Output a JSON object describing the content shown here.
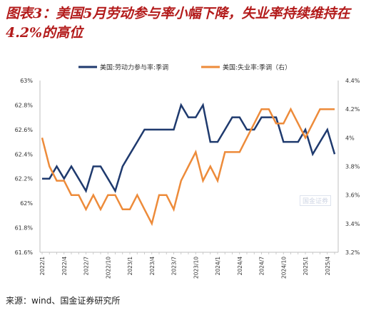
{
  "figure": {
    "title": "图表3：美国5月劳动参与率小幅下降，失业率持续维持在4.2%的高位",
    "source": "来源：wind、国金证券研究所",
    "watermark": "国金证券"
  },
  "chart_data": {
    "type": "line",
    "title": "图表3：美国5月劳动参与率小幅下降，失业率持续维持在4.2%的高位",
    "x_tick_labels": [
      "2022/1",
      "2022/4",
      "2022/7",
      "2022/10",
      "2023/1",
      "2023/4",
      "2023/7",
      "2023/10",
      "2024/1",
      "2024/4",
      "2024/7",
      "2024/10",
      "2025/1",
      "2025/4"
    ],
    "x": [
      "2022/1",
      "2022/2",
      "2022/3",
      "2022/4",
      "2022/5",
      "2022/6",
      "2022/7",
      "2022/8",
      "2022/9",
      "2022/10",
      "2022/11",
      "2022/12",
      "2023/1",
      "2023/2",
      "2023/3",
      "2023/4",
      "2023/5",
      "2023/6",
      "2023/7",
      "2023/8",
      "2023/9",
      "2023/10",
      "2023/11",
      "2023/12",
      "2024/1",
      "2024/2",
      "2024/3",
      "2024/4",
      "2024/5",
      "2024/6",
      "2024/7",
      "2024/8",
      "2024/9",
      "2024/10",
      "2024/11",
      "2024/12",
      "2025/1",
      "2025/2",
      "2025/3",
      "2025/4",
      "2025/5"
    ],
    "left_axis": {
      "min": 61.6,
      "max": 63.0,
      "ticks": [
        "61.6%",
        "61.8%",
        "62%",
        "62.2%",
        "62.4%",
        "62.6%",
        "62.8%",
        "63%"
      ]
    },
    "right_axis": {
      "min": 3.2,
      "max": 4.4,
      "ticks": [
        "3.2%",
        "3.4%",
        "3.6%",
        "3.8%",
        "4%",
        "4.2%",
        "4.4%"
      ]
    },
    "legend_position": "top-center",
    "grid": false,
    "series": [
      {
        "name": "美国:劳动力参与率:季调",
        "axis": "left",
        "color": "#1f3a6e",
        "values": [
          62.2,
          62.2,
          62.3,
          62.2,
          62.3,
          62.2,
          62.1,
          62.3,
          62.3,
          62.2,
          62.1,
          62.3,
          62.4,
          62.5,
          62.6,
          62.6,
          62.6,
          62.6,
          62.6,
          62.8,
          62.7,
          62.7,
          62.8,
          62.5,
          62.5,
          62.6,
          62.7,
          62.7,
          62.6,
          62.6,
          62.7,
          62.7,
          62.7,
          62.5,
          62.5,
          62.5,
          62.6,
          62.4,
          62.5,
          62.6,
          62.4
        ]
      },
      {
        "name": "美国:失业率:季调（右）",
        "axis": "right",
        "color": "#ed8b3a",
        "values": [
          4.0,
          3.8,
          3.7,
          3.7,
          3.6,
          3.6,
          3.5,
          3.6,
          3.5,
          3.6,
          3.6,
          3.5,
          3.5,
          3.6,
          3.5,
          3.4,
          3.6,
          3.6,
          3.5,
          3.7,
          3.8,
          3.9,
          3.7,
          3.8,
          3.7,
          3.9,
          3.9,
          3.9,
          4.0,
          4.1,
          4.2,
          4.2,
          4.1,
          4.1,
          4.2,
          4.1,
          4.0,
          4.1,
          4.2,
          4.2,
          4.2
        ]
      }
    ]
  }
}
